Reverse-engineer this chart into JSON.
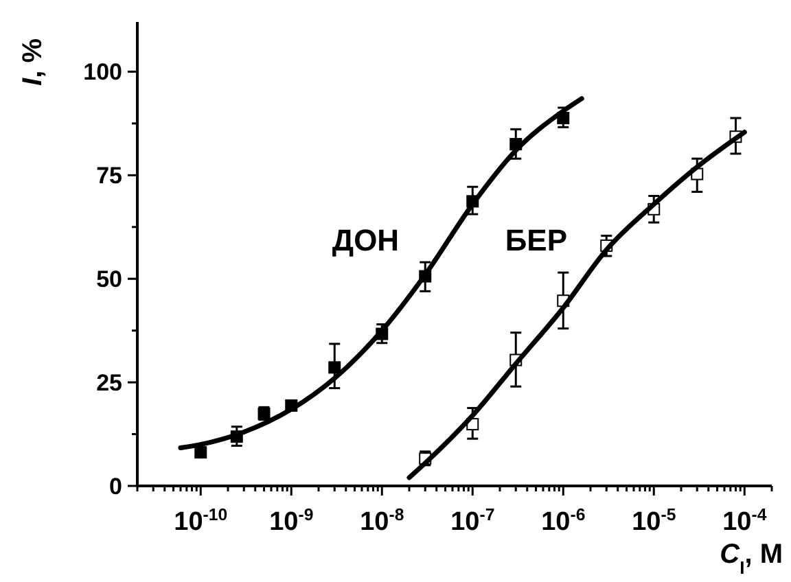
{
  "chart_data": {
    "type": "scatter",
    "xlabel": "C$_{I}$, M",
    "ylabel": "I, %",
    "log": "x",
    "xlim": [
      2e-11,
      0.0002
    ],
    "ylim": [
      0,
      112
    ],
    "xticks": [
      {
        "value": 2e-11,
        "label": null
      },
      {
        "value": 3e-11,
        "label": null
      },
      {
        "value": 4e-11,
        "label": null
      },
      {
        "value": 5e-11,
        "label": null
      },
      {
        "value": 6e-11,
        "label": null
      },
      {
        "value": 7e-11,
        "label": null
      },
      {
        "value": 8e-11,
        "label": null
      },
      {
        "value": 9e-11,
        "label": null
      },
      {
        "value": 1e-10,
        "label": "10$^{-10}$"
      },
      {
        "value": 2e-10,
        "label": null
      },
      {
        "value": 3e-10,
        "label": null
      },
      {
        "value": 4e-10,
        "label": null
      },
      {
        "value": 5e-10,
        "label": null
      },
      {
        "value": 6e-10,
        "label": null
      },
      {
        "value": 7e-10,
        "label": null
      },
      {
        "value": 8e-10,
        "label": null
      },
      {
        "value": 9e-10,
        "label": null
      },
      {
        "value": 1e-09,
        "label": "10$^{-9}$"
      },
      {
        "value": 2e-09,
        "label": null
      },
      {
        "value": 3e-09,
        "label": null
      },
      {
        "value": 4e-09,
        "label": null
      },
      {
        "value": 5e-09,
        "label": null
      },
      {
        "value": 6e-09,
        "label": null
      },
      {
        "value": 7e-09,
        "label": null
      },
      {
        "value": 8e-09,
        "label": null
      },
      {
        "value": 9e-09,
        "label": null
      },
      {
        "value": 1e-08,
        "label": "10$^{-8}$"
      },
      {
        "value": 2e-08,
        "label": null
      },
      {
        "value": 3e-08,
        "label": null
      },
      {
        "value": 4e-08,
        "label": null
      },
      {
        "value": 5e-08,
        "label": null
      },
      {
        "value": 6e-08,
        "label": null
      },
      {
        "value": 7e-08,
        "label": null
      },
      {
        "value": 8e-08,
        "label": null
      },
      {
        "value": 9e-08,
        "label": null
      },
      {
        "value": 1e-07,
        "label": "10$^{-7}$"
      },
      {
        "value": 2e-07,
        "label": null
      },
      {
        "value": 3e-07,
        "label": null
      },
      {
        "value": 4e-07,
        "label": null
      },
      {
        "value": 5e-07,
        "label": null
      },
      {
        "value": 6e-07,
        "label": null
      },
      {
        "value": 7e-07,
        "label": null
      },
      {
        "value": 8e-07,
        "label": null
      },
      {
        "value": 9e-07,
        "label": null
      },
      {
        "value": 1e-06,
        "label": "10$^{-6}$"
      },
      {
        "value": 2e-06,
        "label": null
      },
      {
        "value": 3e-06,
        "label": null
      },
      {
        "value": 4e-06,
        "label": null
      },
      {
        "value": 5e-06,
        "label": null
      },
      {
        "value": 6e-06,
        "label": null
      },
      {
        "value": 7e-06,
        "label": null
      },
      {
        "value": 8e-06,
        "label": null
      },
      {
        "value": 9e-06,
        "label": null
      },
      {
        "value": 1e-05,
        "label": "10$^{-5}$"
      },
      {
        "value": 2e-05,
        "label": null
      },
      {
        "value": 3e-05,
        "label": null
      },
      {
        "value": 4e-05,
        "label": null
      },
      {
        "value": 5e-05,
        "label": null
      },
      {
        "value": 6e-05,
        "label": null
      },
      {
        "value": 7e-05,
        "label": null
      },
      {
        "value": 8e-05,
        "label": null
      },
      {
        "value": 9e-05,
        "label": null
      },
      {
        "value": 0.0001,
        "label": "10$^{-4}$"
      },
      {
        "value": 0.0002,
        "label": null
      }
    ],
    "yticks": [
      0,
      {
        "value": 12.5,
        "label": null
      },
      25,
      {
        "value": 37.5,
        "label": null
      },
      50,
      {
        "value": 62.5,
        "label": null
      },
      75,
      {
        "value": 87.5,
        "label": null
      },
      100
    ],
    "series": [
      {
        "marker": "square",
        "color": "#000000",
        "x": [
          1e-10,
          2.5e-10,
          5e-10,
          1e-09,
          3e-09,
          1e-08,
          3e-08,
          1e-07,
          3e-07,
          1e-06
        ],
        "values": [
          8.1,
          11.9,
          17.4,
          19.4,
          28.6,
          36.7,
          50.6,
          68.7,
          82.5,
          88.8
        ],
        "errors": [
          null,
          [
            9.7,
            14.3
          ],
          [
            16,
            19
          ],
          null,
          [
            23.6,
            34.3
          ],
          [
            34.5,
            39
          ],
          [
            47,
            54
          ],
          [
            65.6,
            72.2
          ],
          [
            79,
            86.1
          ],
          [
            86.6,
            91.3
          ]
        ]
      },
      {
        "type": "line",
        "name": "ДОН",
        "color": "#000000",
        "x": [
          6e-11,
          1e-10,
          3e-10,
          1e-09,
          3e-09,
          1e-08,
          3e-08,
          1e-07,
          3e-07,
          1e-06,
          1.6e-06
        ],
        "values": [
          9.2,
          10,
          13,
          18.5,
          26,
          37.5,
          51,
          68,
          81,
          90.5,
          93.5
        ]
      },
      {
        "marker": "square",
        "color": "#ffffff",
        "x": [
          3e-08,
          1e-07,
          3e-07,
          1e-06,
          3e-06,
          1e-05,
          3e-05,
          8e-05
        ],
        "values": [
          6.6,
          14.9,
          30.4,
          44.7,
          58,
          66.8,
          75.3,
          84.3
        ],
        "errors": [
          [
            5,
            8.3
          ],
          [
            11.4,
            18.8
          ],
          [
            24,
            37
          ],
          [
            38,
            51.5
          ],
          [
            55.5,
            60.4
          ],
          [
            63.6,
            70
          ],
          [
            71,
            79
          ],
          [
            80.2,
            88.8
          ]
        ]
      },
      {
        "type": "line",
        "name": "БЕР",
        "color": "#000000",
        "x": [
          2e-08,
          3e-08,
          1e-07,
          3e-07,
          1e-06,
          3e-06,
          1e-05,
          3e-05,
          0.0001
        ],
        "values": [
          2,
          5.5,
          17,
          29.5,
          43,
          57,
          68,
          77,
          85.4
        ]
      }
    ]
  }
}
